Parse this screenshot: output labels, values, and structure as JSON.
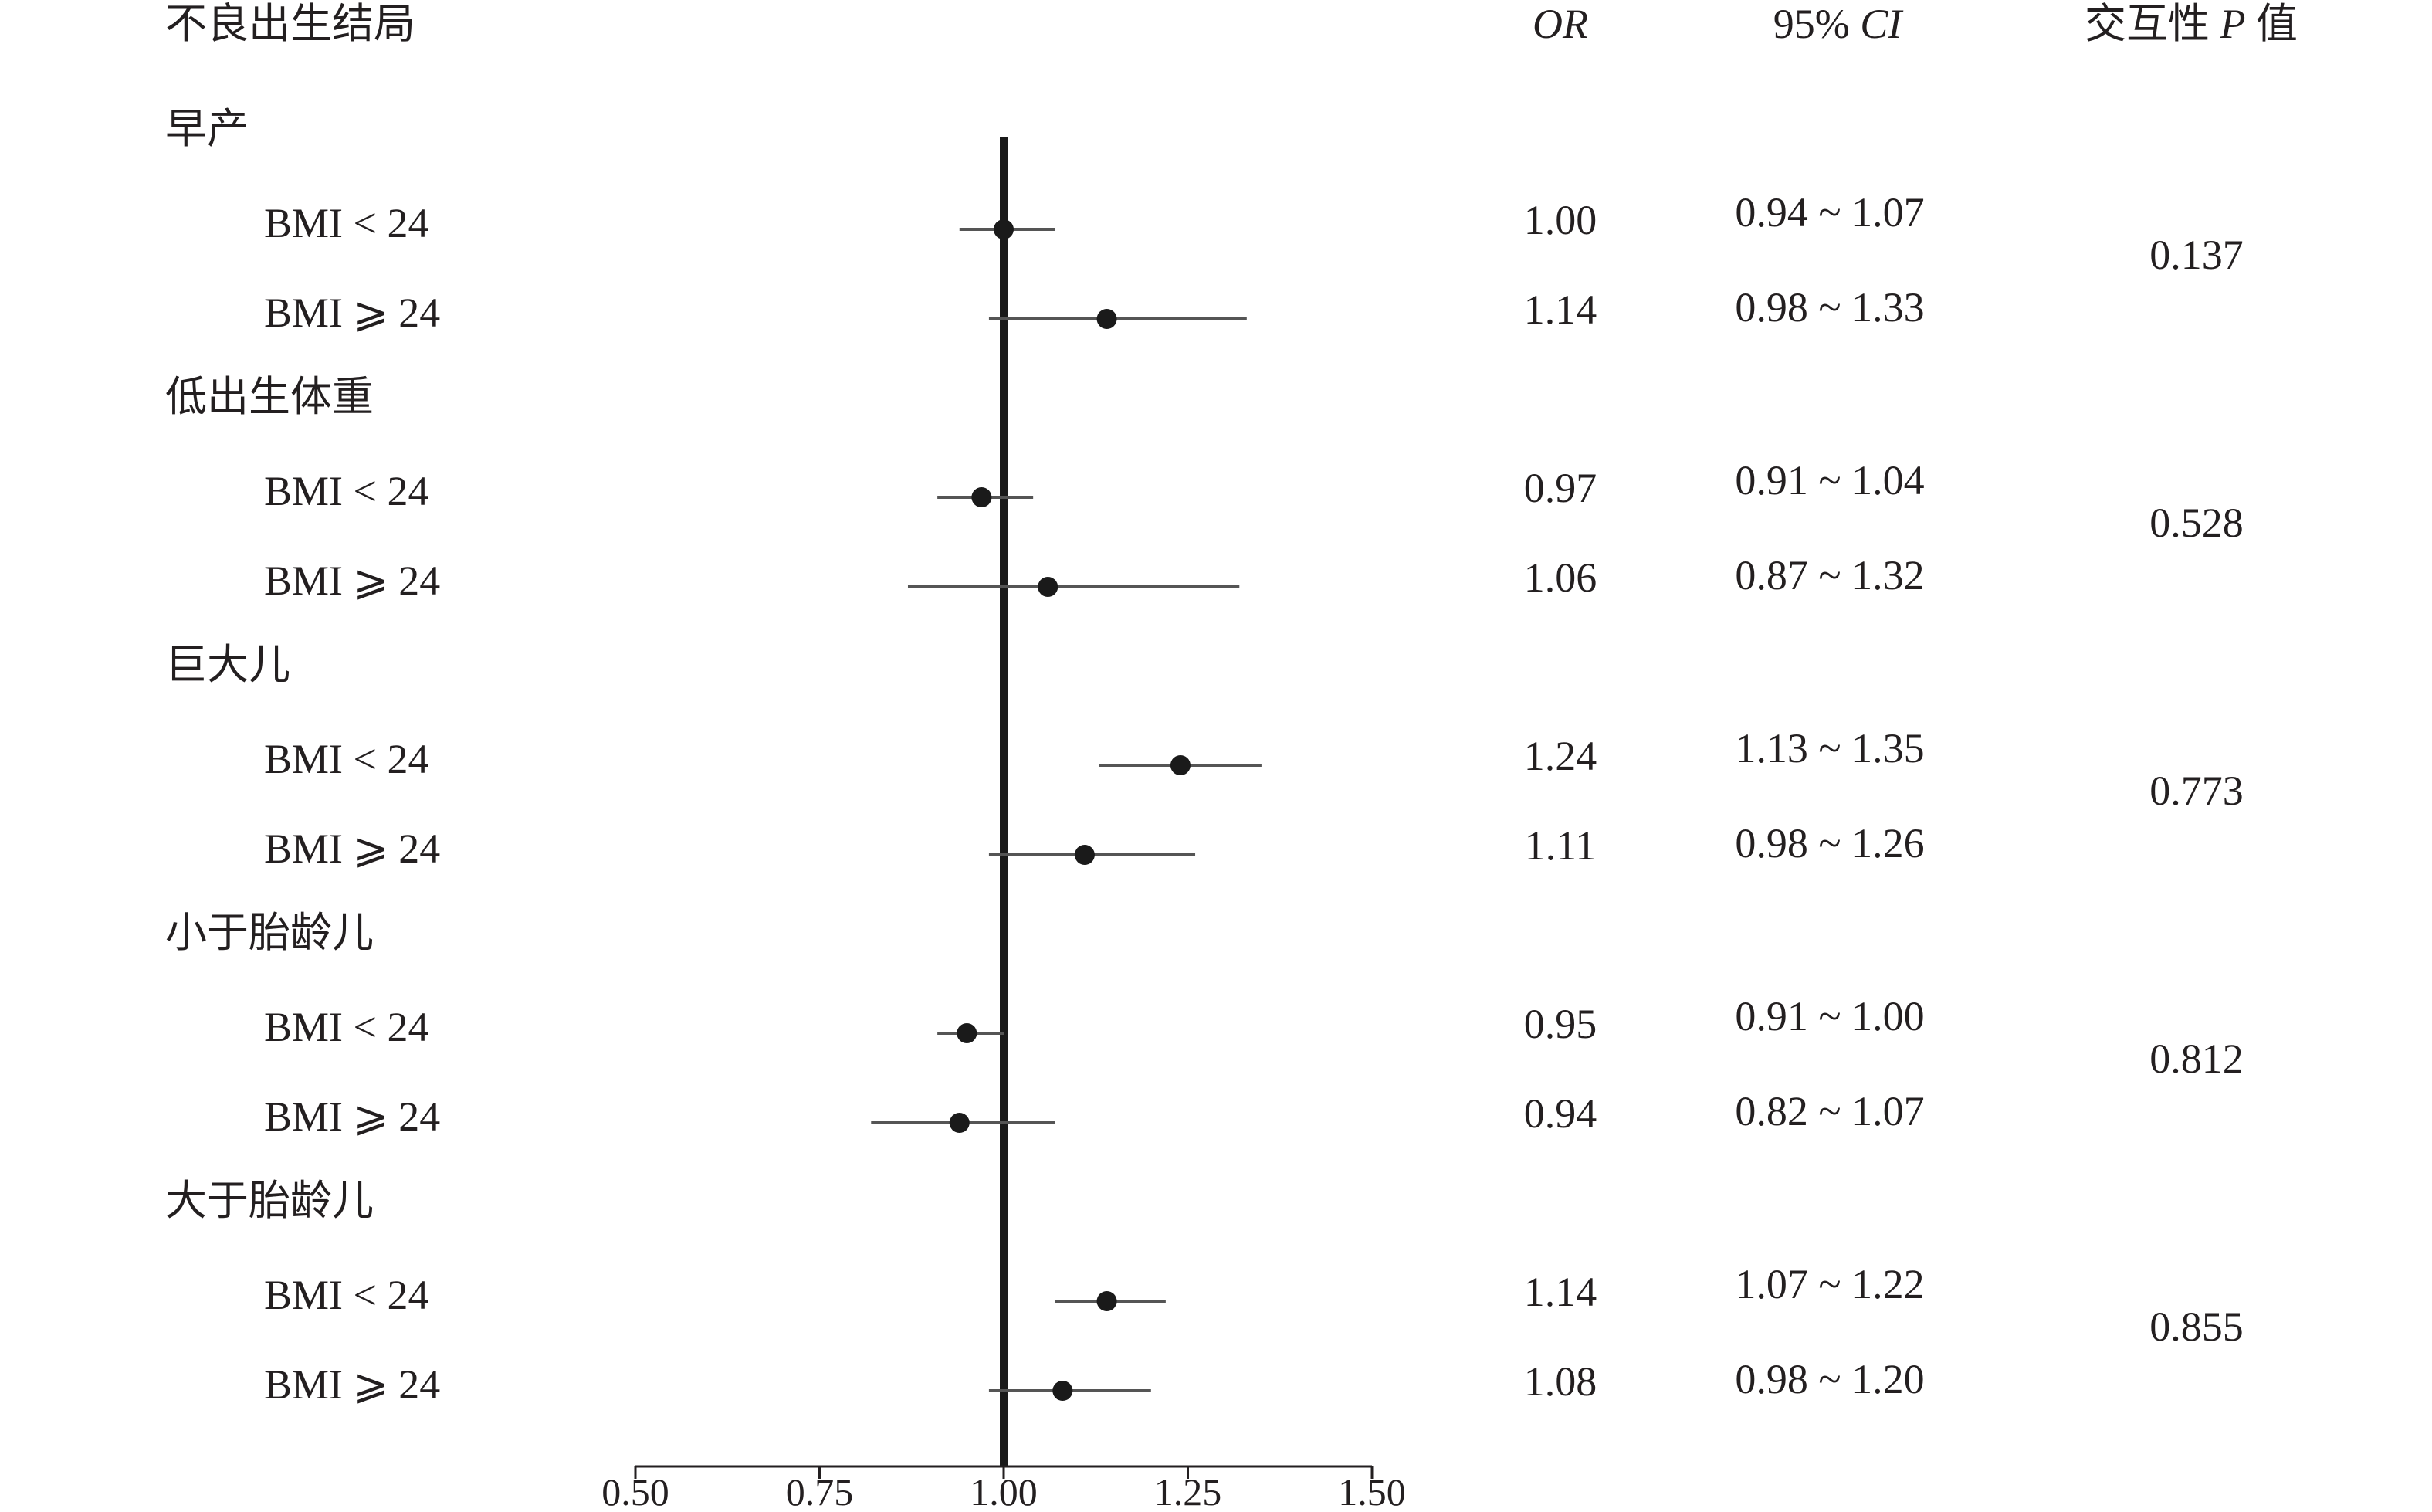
{
  "table_header": {
    "outcome": "不良出生结局",
    "or": "OR",
    "ci_parts": [
      "95% ",
      "CI"
    ],
    "p_parts": [
      "交互性 ",
      "P",
      " 值"
    ]
  },
  "chart_data": {
    "type": "scatter",
    "xlim": [
      0.5,
      1.5
    ],
    "x_ticks": [
      0.5,
      0.75,
      1.0,
      1.25,
      1.5
    ],
    "x_tick_labels": [
      "0.50",
      "0.75",
      "1.00",
      "1.25",
      "1.50"
    ],
    "reference_line_x": 1.0,
    "grid": false,
    "colors": {
      "text": "#231f20",
      "point": "#1a1a1a",
      "ci_line": "#555555",
      "reference_line": "#1a1a1a",
      "axis": "#231f20"
    },
    "groups": [
      {
        "name": "早产",
        "p_interaction": "0.137",
        "rows": [
          {
            "label": "BMI < 24",
            "or": 1.0,
            "or_label": "1.00",
            "ci": [
              0.94,
              1.07
            ],
            "ci_label": "0.94 ~ 1.07"
          },
          {
            "label": "BMI ⩾ 24",
            "or": 1.14,
            "or_label": "1.14",
            "ci": [
              0.98,
              1.33
            ],
            "ci_label": "0.98 ~ 1.33"
          }
        ]
      },
      {
        "name": "低出生体重",
        "p_interaction": "0.528",
        "rows": [
          {
            "label": "BMI < 24",
            "or": 0.97,
            "or_label": "0.97",
            "ci": [
              0.91,
              1.04
            ],
            "ci_label": "0.91 ~ 1.04"
          },
          {
            "label": "BMI ⩾ 24",
            "or": 1.06,
            "or_label": "1.06",
            "ci": [
              0.87,
              1.32
            ],
            "ci_label": "0.87 ~ 1.32"
          }
        ]
      },
      {
        "name": "巨大儿",
        "p_interaction": "0.773",
        "rows": [
          {
            "label": "BMI < 24",
            "or": 1.24,
            "or_label": "1.24",
            "ci": [
              1.13,
              1.35
            ],
            "ci_label": "1.13 ~ 1.35"
          },
          {
            "label": "BMI ⩾ 24",
            "or": 1.11,
            "or_label": "1.11",
            "ci": [
              0.98,
              1.26
            ],
            "ci_label": "0.98 ~ 1.26"
          }
        ]
      },
      {
        "name": "小于胎龄儿",
        "p_interaction": "0.812",
        "rows": [
          {
            "label": "BMI < 24",
            "or": 0.95,
            "or_label": "0.95",
            "ci": [
              0.91,
              1.0
            ],
            "ci_label": "0.91 ~ 1.00"
          },
          {
            "label": "BMI ⩾ 24",
            "or": 0.94,
            "or_label": "0.94",
            "ci": [
              0.82,
              1.07
            ],
            "ci_label": "0.82 ~ 1.07"
          }
        ]
      },
      {
        "name": "大于胎龄儿",
        "p_interaction": "0.855",
        "rows": [
          {
            "label": "BMI < 24",
            "or": 1.14,
            "or_label": "1.14",
            "ci": [
              1.07,
              1.22
            ],
            "ci_label": "1.07 ~ 1.22"
          },
          {
            "label": "BMI ⩾ 24",
            "or": 1.08,
            "or_label": "1.08",
            "ci": [
              0.98,
              1.2
            ],
            "ci_label": "0.98 ~ 1.20"
          }
        ]
      }
    ]
  }
}
